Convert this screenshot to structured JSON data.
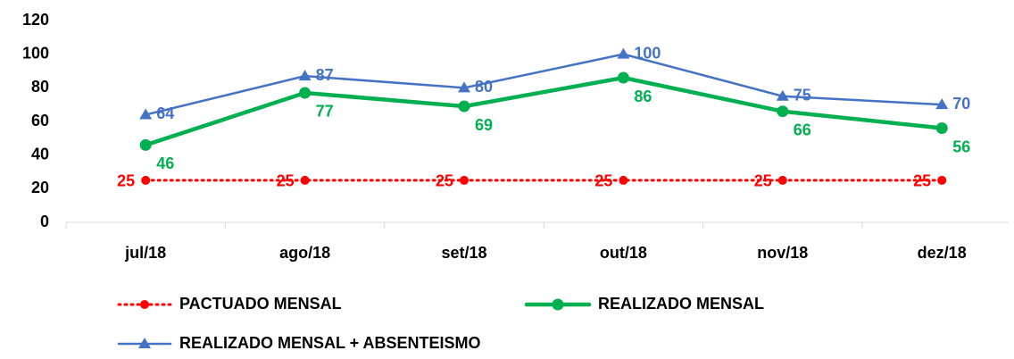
{
  "chart_data": {
    "type": "line",
    "categories": [
      "jul/18",
      "ago/18",
      "set/18",
      "out/18",
      "nov/18",
      "dez/18"
    ],
    "series": [
      {
        "name": "PACTUADO MENSAL",
        "color": "#ff0000",
        "style": "dotted",
        "marker": "circle",
        "values": [
          25,
          25,
          25,
          25,
          25,
          25
        ]
      },
      {
        "name": "REALIZADO MENSAL",
        "color": "#00b050",
        "style": "solid",
        "marker": "circle",
        "values": [
          46,
          77,
          69,
          86,
          66,
          56
        ]
      },
      {
        "name": "REALIZADO MENSAL + ABSENTEISMO",
        "color": "#4472c4",
        "style": "solid",
        "marker": "triangle",
        "values": [
          64,
          87,
          80,
          100,
          75,
          70
        ]
      }
    ],
    "ylim": [
      0,
      120
    ],
    "yticks": [
      0,
      20,
      40,
      60,
      80,
      100,
      120
    ],
    "grid": false,
    "legend": "bottom"
  }
}
